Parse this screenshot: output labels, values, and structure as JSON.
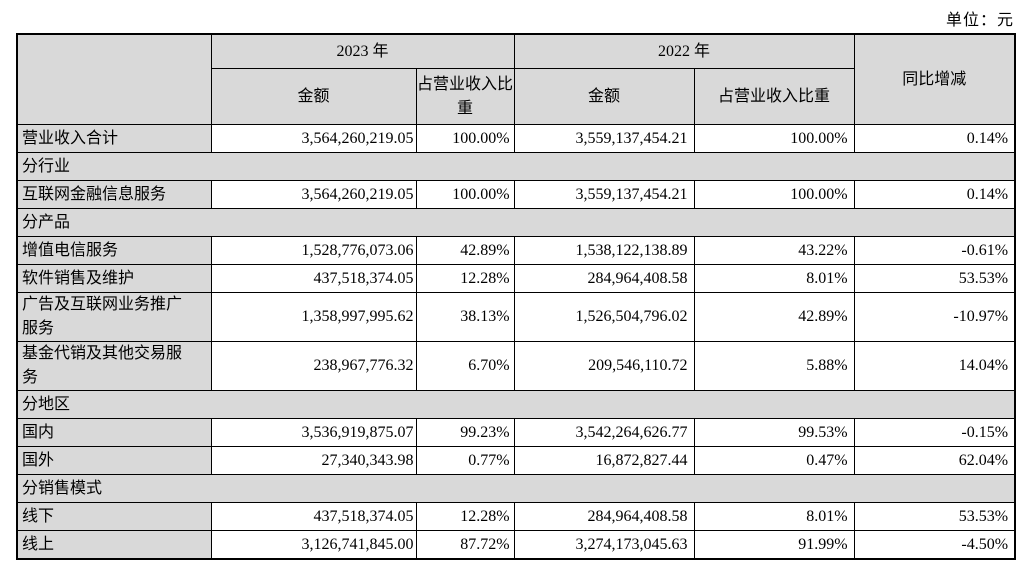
{
  "unit_label": "单位：元",
  "table": {
    "header": {
      "year_2023": "2023 年",
      "year_2022": "2022 年",
      "amount": "金额",
      "pct_of_revenue": "占营业收入比重",
      "yoy_change": "同比增减"
    },
    "rows": [
      {
        "type": "data",
        "label": "营业收入合计",
        "a2023": "3,564,260,219.05",
        "p2023": "100.00%",
        "a2022": "3,559,137,454.21",
        "p2022": "100.00%",
        "yoy": "0.14%"
      },
      {
        "type": "section",
        "label": "分行业"
      },
      {
        "type": "data",
        "label": "互联网金融信息服务",
        "a2023": "3,564,260,219.05",
        "p2023": "100.00%",
        "a2022": "3,559,137,454.21",
        "p2022": "100.00%",
        "yoy": "0.14%"
      },
      {
        "type": "section",
        "label": "分产品"
      },
      {
        "type": "data",
        "label": "增值电信服务",
        "a2023": "1,528,776,073.06",
        "p2023": "42.89%",
        "a2022": "1,538,122,138.89",
        "p2022": "43.22%",
        "yoy": "-0.61%"
      },
      {
        "type": "data",
        "label": "软件销售及维护",
        "a2023": "437,518,374.05",
        "p2023": "12.28%",
        "a2022": "284,964,408.58",
        "p2022": "8.01%",
        "yoy": "53.53%"
      },
      {
        "type": "data",
        "label": "广告及互联网业务推广服务",
        "a2023": "1,358,997,995.62",
        "p2023": "38.13%",
        "a2022": "1,526,504,796.02",
        "p2022": "42.89%",
        "yoy": "-10.97%"
      },
      {
        "type": "data",
        "label": "基金代销及其他交易服务",
        "a2023": "238,967,776.32",
        "p2023": "6.70%",
        "a2022": "209,546,110.72",
        "p2022": "5.88%",
        "yoy": "14.04%"
      },
      {
        "type": "section",
        "label": "分地区"
      },
      {
        "type": "data",
        "label": "国内",
        "a2023": "3,536,919,875.07",
        "p2023": "99.23%",
        "a2022": "3,542,264,626.77",
        "p2022": "99.53%",
        "yoy": "-0.15%"
      },
      {
        "type": "data",
        "label": "国外",
        "a2023": "27,340,343.98",
        "p2023": "0.77%",
        "a2022": "16,872,827.44",
        "p2022": "0.47%",
        "yoy": "62.04%"
      },
      {
        "type": "section",
        "label": "分销售模式"
      },
      {
        "type": "data",
        "label": "线下",
        "a2023": "437,518,374.05",
        "p2023": "12.28%",
        "a2022": "284,964,408.58",
        "p2022": "8.01%",
        "yoy": "53.53%"
      },
      {
        "type": "data",
        "label": "线上",
        "a2023": "3,126,741,845.00",
        "p2023": "87.72%",
        "a2022": "3,274,173,045.63",
        "p2022": "91.99%",
        "yoy": "-4.50%"
      }
    ]
  },
  "colors": {
    "cell_shading": "#d9d9d9",
    "border": "#000000",
    "background": "#ffffff"
  }
}
